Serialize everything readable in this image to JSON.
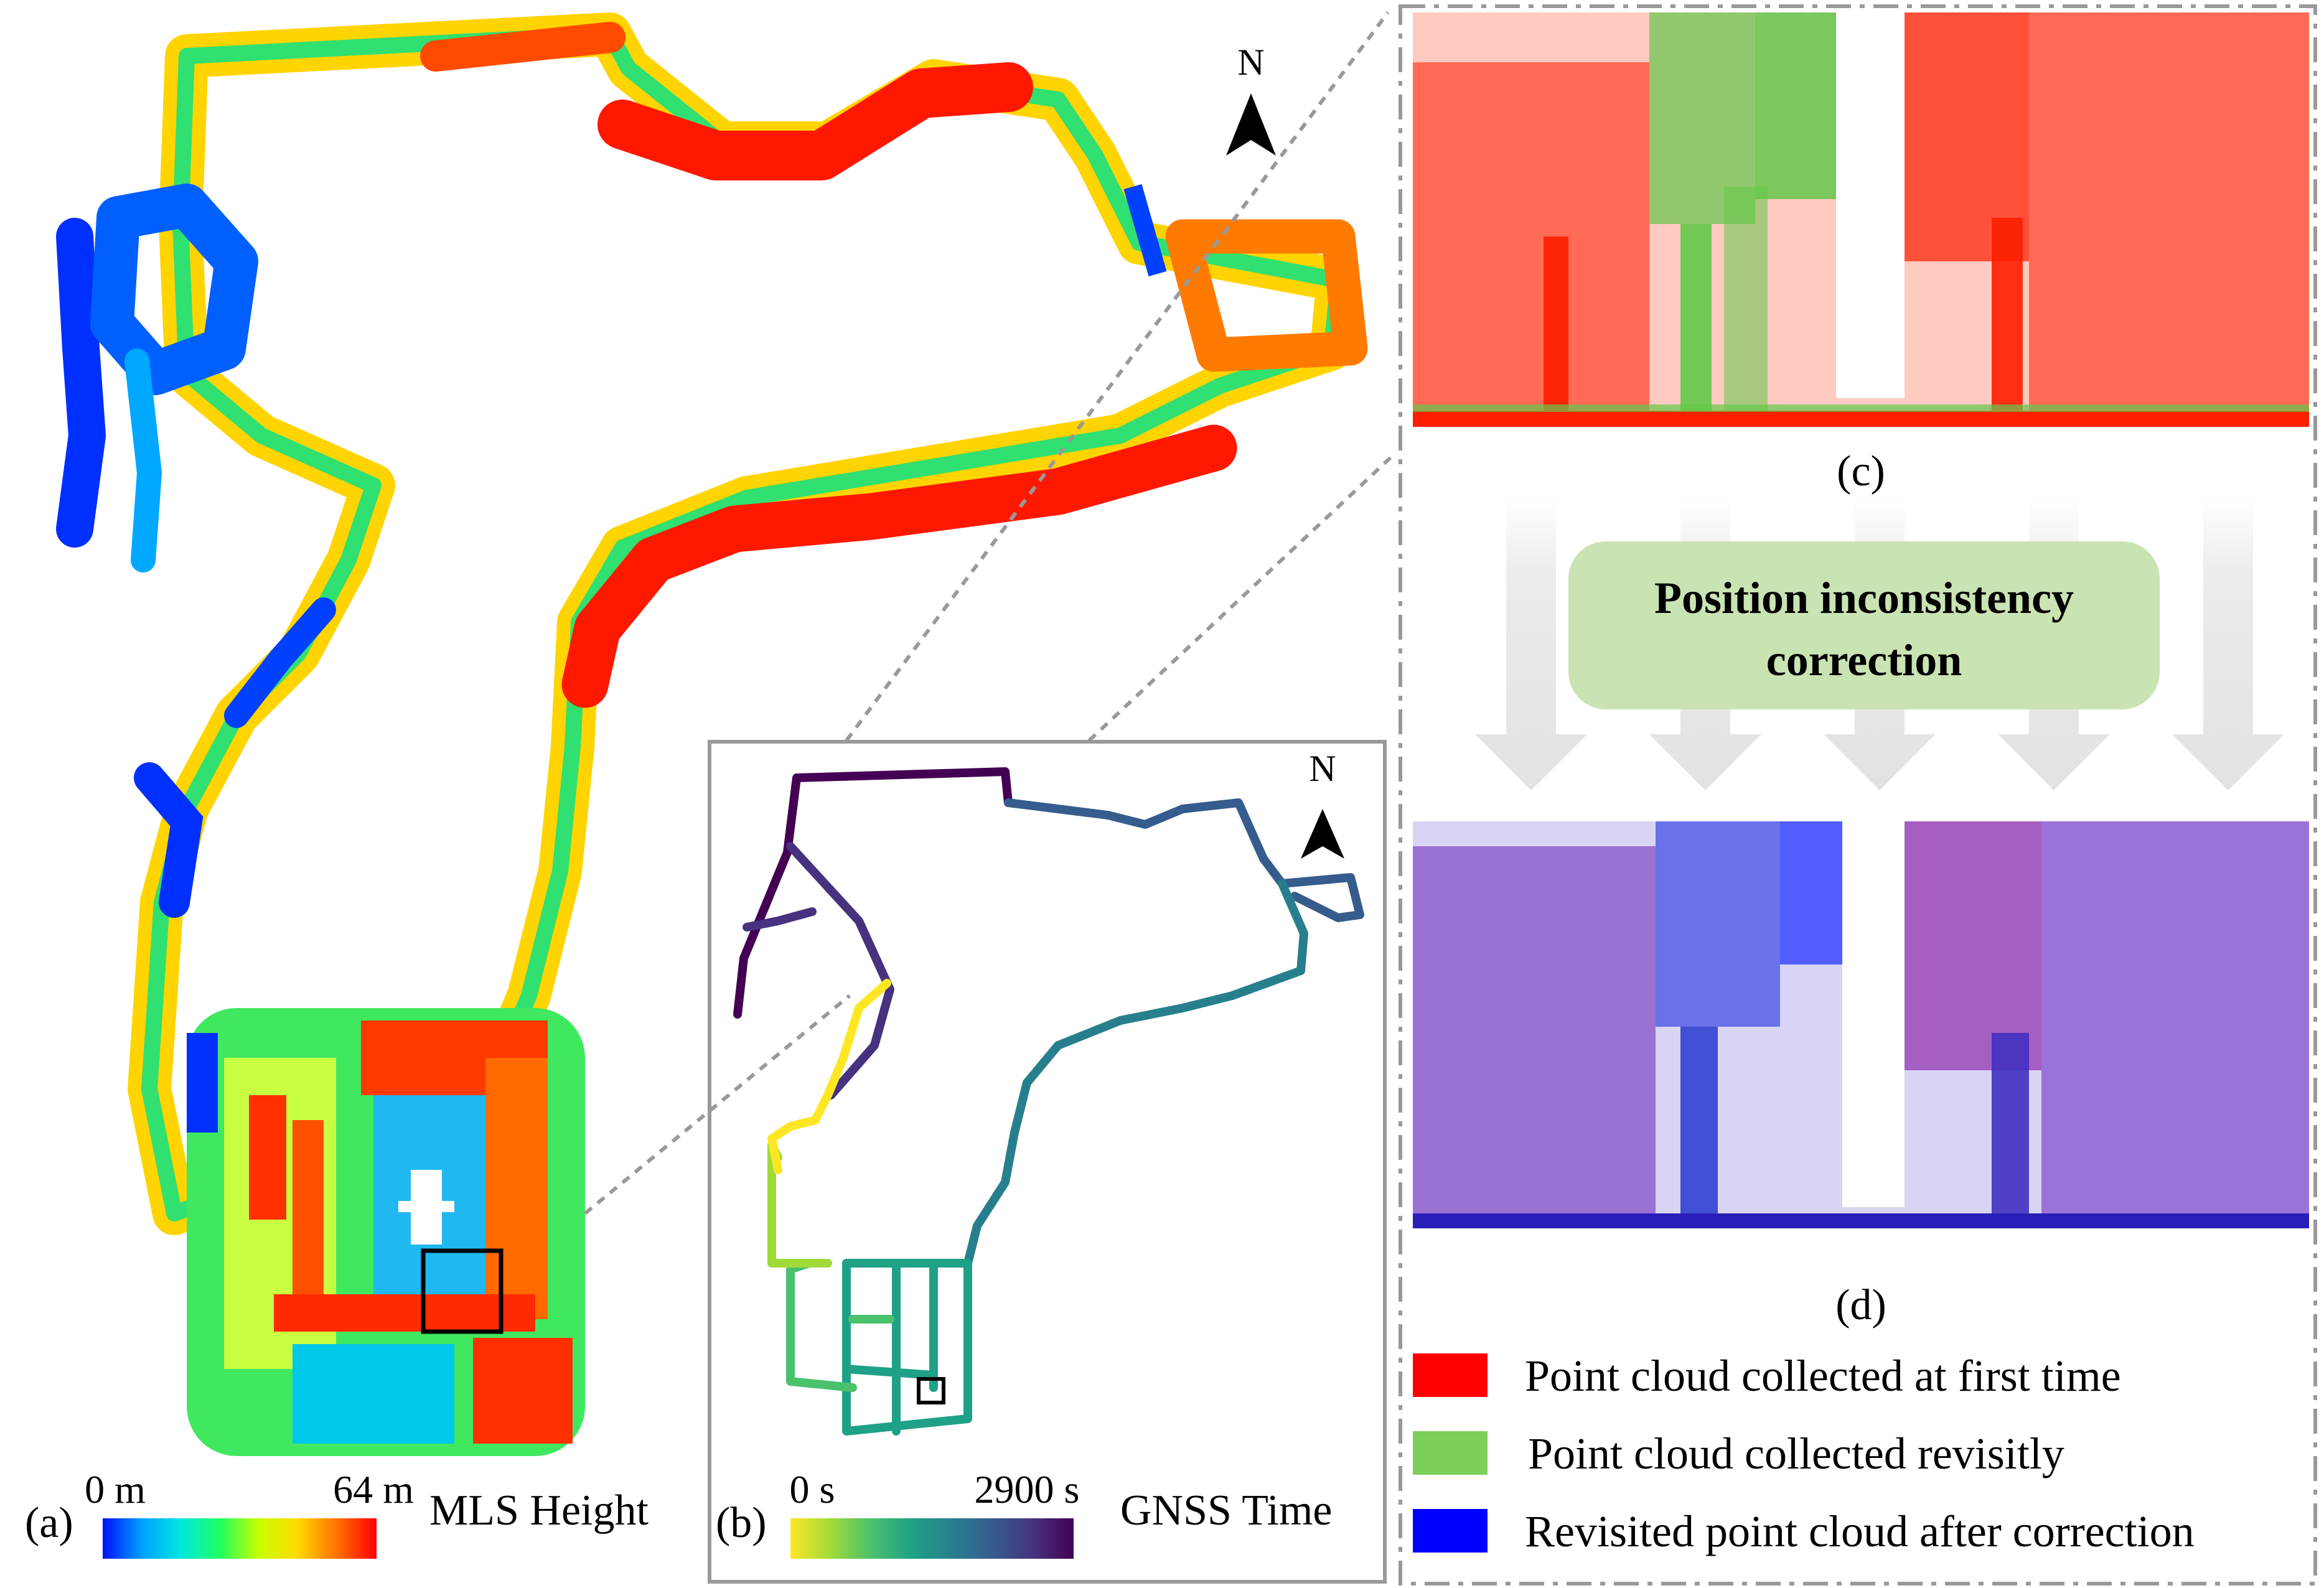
{
  "panels": {
    "a": {
      "label": "(a)",
      "legend_title": "MLS Height",
      "range_min": "0 m",
      "range_max": "64 m",
      "colormap": [
        "#0010ff",
        "#00a0ff",
        "#00e8e0",
        "#20ff60",
        "#c8ff00",
        "#ffd800",
        "#ff7000",
        "#ff0000"
      ]
    },
    "b": {
      "label": "(b)",
      "legend_title": "GNSS Time",
      "range_min": "0 s",
      "range_max": "2900 s",
      "colormap": [
        "#fde725",
        "#a0da39",
        "#4ac16d",
        "#1fa187",
        "#277f8e",
        "#365c8d",
        "#46327e",
        "#440154"
      ]
    },
    "c": {
      "label": "(c)"
    },
    "d": {
      "label": "(d)"
    }
  },
  "compass": {
    "letter": "N"
  },
  "process": {
    "line1": "Position inconsistency",
    "line2": "correction"
  },
  "legend": [
    {
      "label": "Point cloud collected at first time",
      "color": "#ff0000"
    },
    {
      "label": "Point cloud collected revisitly",
      "color": "#7ccf5a"
    },
    {
      "label": "Revisited point cloud after correction",
      "color": "#0000ff"
    }
  ],
  "colors": {
    "box_fill": "#c9e3b2",
    "arrow": "#e6e6e6",
    "frame": "#999999"
  }
}
